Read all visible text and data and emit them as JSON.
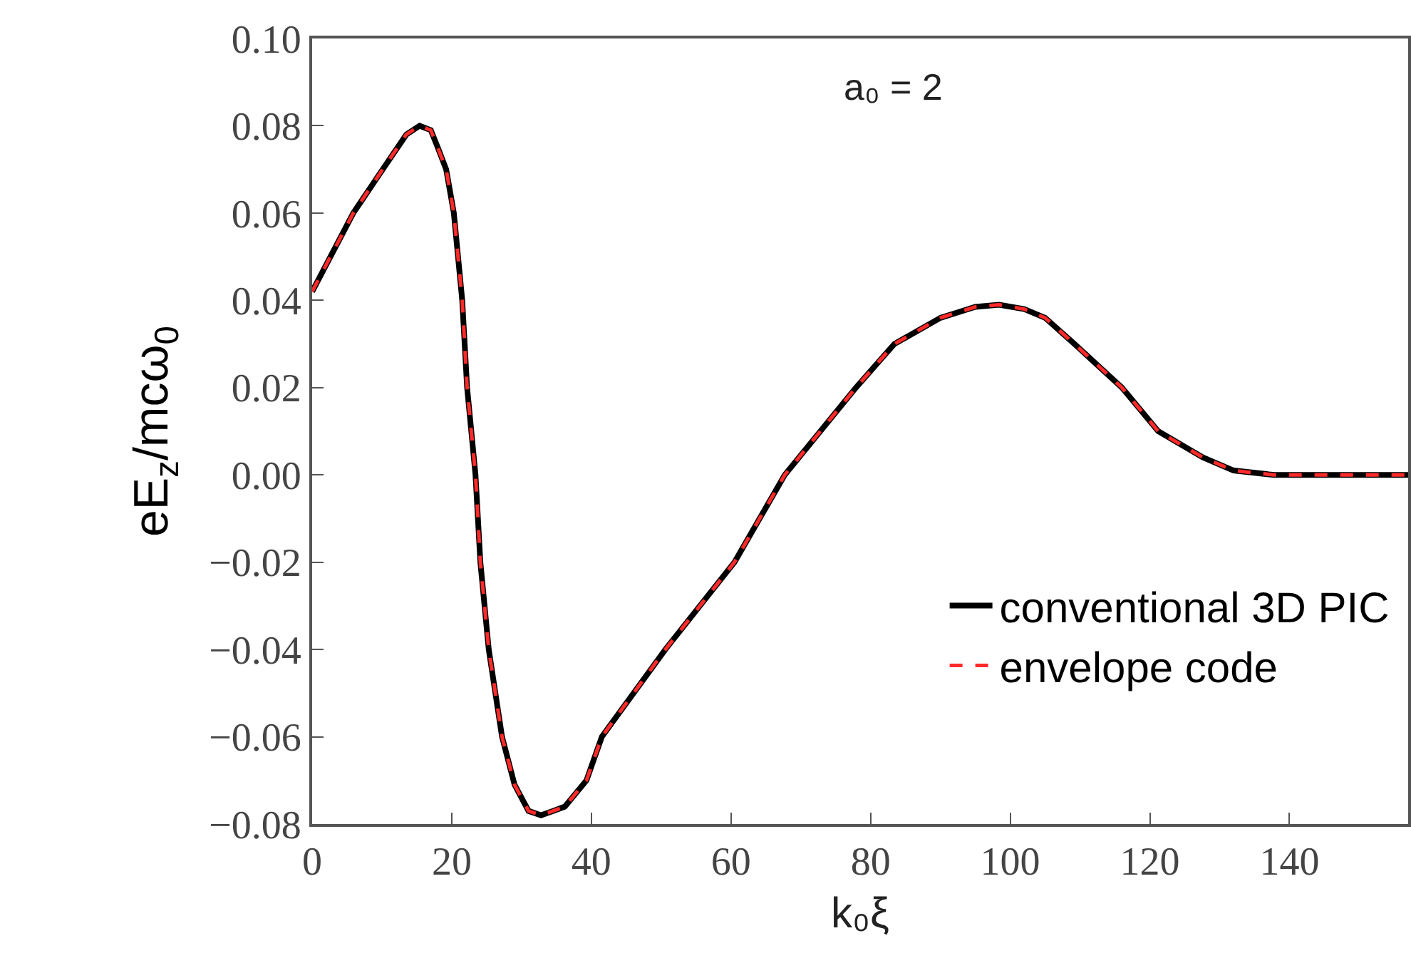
{
  "chart_data": {
    "type": "line",
    "xlabel": "k₀ξ",
    "ylabel": "eE$_{z}$/mcω$_{0}$",
    "annotations": [
      "a₀ = 2"
    ],
    "x": [
      0,
      5.9,
      10.1,
      13.5,
      15.4,
      17,
      18,
      19.2,
      20.3,
      21.5,
      22.2,
      23.4,
      24.1,
      25.3,
      27.2,
      29,
      31,
      32.8,
      34.5,
      36.2,
      39.3,
      41.5,
      50.6,
      60.5,
      67.7,
      77.9,
      83.4,
      90,
      95,
      98.4,
      102,
      105,
      109.2,
      116,
      121.2,
      127.6,
      132,
      137.8,
      145,
      157
    ],
    "series": [
      {
        "name": "conventional 3D PIC",
        "color": "#000000",
        "values": [
          0.042,
          0.06,
          0.07,
          0.078,
          0.08,
          0.079,
          0.075,
          0.07,
          0.06,
          0.04,
          0.02,
          0,
          -0.02,
          -0.04,
          -0.06,
          -0.071,
          -0.077,
          -0.078,
          -0.077,
          -0.076,
          -0.07,
          -0.06,
          -0.04,
          -0.02,
          0,
          0.02,
          0.03,
          0.036,
          0.0385,
          0.039,
          0.038,
          0.036,
          0.03,
          0.02,
          0.01,
          0.004,
          0.001,
          0,
          0,
          0
        ]
      },
      {
        "name": "envelope code",
        "color": "#ff2a2a",
        "line_style": "dashed",
        "values": [
          0.042,
          0.06,
          0.07,
          0.078,
          0.08,
          0.079,
          0.075,
          0.07,
          0.06,
          0.04,
          0.02,
          0,
          -0.02,
          -0.04,
          -0.06,
          -0.071,
          -0.077,
          -0.078,
          -0.077,
          -0.076,
          -0.07,
          -0.06,
          -0.04,
          -0.02,
          0,
          0.02,
          0.03,
          0.036,
          0.0385,
          0.039,
          0.038,
          0.036,
          0.03,
          0.02,
          0.01,
          0.004,
          0.001,
          0,
          0,
          0
        ]
      }
    ],
    "xlim": [
      0,
      157
    ],
    "xticks": [
      0,
      20,
      40,
      60,
      80,
      100,
      120,
      140
    ],
    "ylim": [
      -0.08,
      0.1
    ],
    "yticks": [
      {
        "value": -0.08,
        "label": "−0.08"
      },
      {
        "value": -0.06,
        "label": "−0.06"
      },
      {
        "value": -0.04,
        "label": "−0.04"
      },
      {
        "value": -0.02,
        "label": "−0.02"
      },
      {
        "value": 0,
        "label": "0.00"
      },
      {
        "value": 0.02,
        "label": "0.02"
      },
      {
        "value": 0.04,
        "label": "0.04"
      },
      {
        "value": 0.06,
        "label": "0.06"
      },
      {
        "value": 0.08,
        "label": "0.08"
      },
      {
        "value": 0.1,
        "label": "0.10"
      }
    ],
    "legend": "right",
    "grid": false,
    "marker": "none",
    "line_style": "solid"
  }
}
